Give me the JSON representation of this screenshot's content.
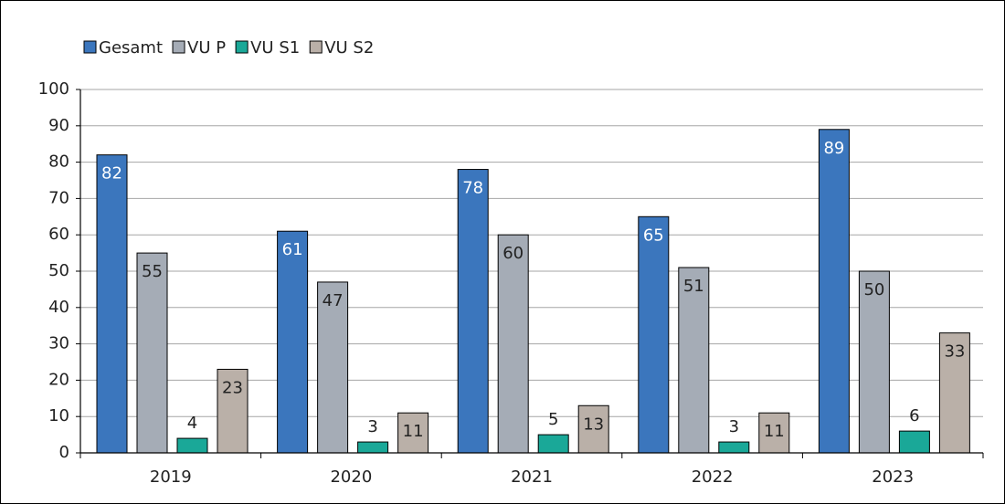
{
  "chart_data": {
    "type": "bar",
    "categories": [
      "2019",
      "2020",
      "2021",
      "2022",
      "2023"
    ],
    "series": [
      {
        "name": "Gesamt",
        "color": "#3b76bd",
        "values": [
          82,
          61,
          78,
          65,
          89
        ]
      },
      {
        "name": "VU P",
        "color": "#a5acb6",
        "values": [
          55,
          47,
          60,
          51,
          50
        ]
      },
      {
        "name": "VU S1",
        "color": "#1aa898",
        "values": [
          4,
          3,
          5,
          3,
          6
        ]
      },
      {
        "name": "VU S2",
        "color": "#bab0a8",
        "values": [
          23,
          11,
          13,
          11,
          33
        ]
      }
    ],
    "ylim": [
      0,
      100
    ],
    "yticks": [
      0,
      10,
      20,
      30,
      40,
      50,
      60,
      70,
      80,
      90,
      100
    ],
    "grid": true,
    "legend": "top-left"
  }
}
